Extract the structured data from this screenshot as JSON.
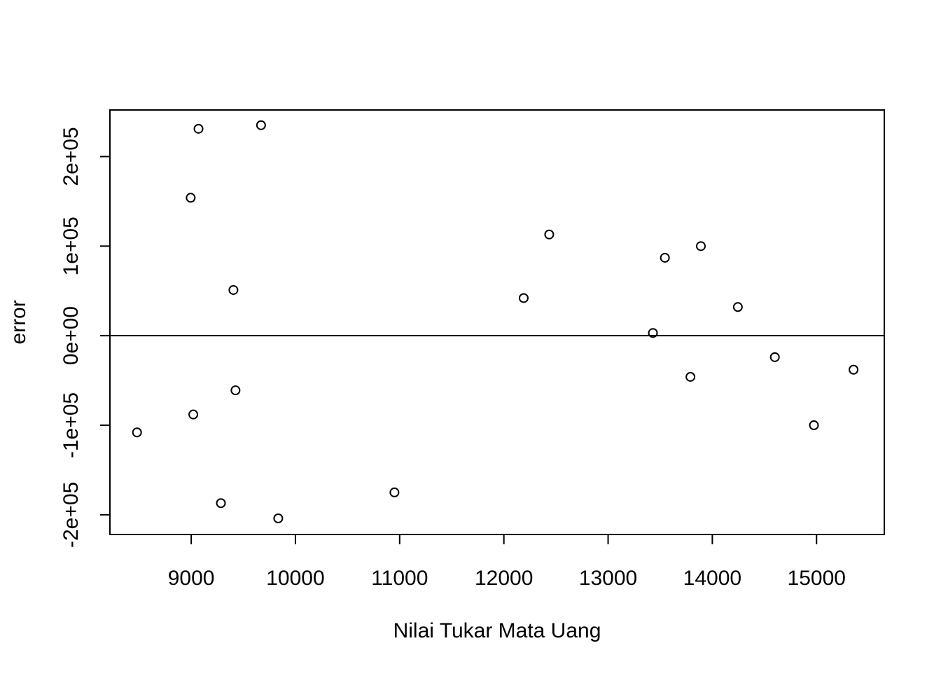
{
  "chart_data": {
    "type": "scatter",
    "title": "",
    "xlabel": "Nilai Tukar Mata Uang",
    "ylabel": "error",
    "xlim": [
      8220,
      15650
    ],
    "ylim": [
      -222000,
      252000
    ],
    "xticks": [
      9000,
      10000,
      11000,
      12000,
      13000,
      14000,
      15000
    ],
    "xtick_labels": [
      "9000",
      "10000",
      "11000",
      "12000",
      "13000",
      "14000",
      "15000"
    ],
    "yticks": [
      -200000,
      -100000,
      0,
      100000,
      200000
    ],
    "ytick_labels": [
      "-2e+05",
      "-1e+05",
      "0e+00",
      "1e+05",
      "2e+05"
    ],
    "hline": 0,
    "grid": false,
    "marker": "open-circle",
    "point_color": "#000000",
    "points": [
      {
        "x": 8480,
        "y": -108000
      },
      {
        "x": 8995,
        "y": 154000
      },
      {
        "x": 9020,
        "y": -88000
      },
      {
        "x": 9070,
        "y": 231000
      },
      {
        "x": 9285,
        "y": -187000
      },
      {
        "x": 9405,
        "y": 51000
      },
      {
        "x": 9425,
        "y": -61000
      },
      {
        "x": 9670,
        "y": 235000
      },
      {
        "x": 9835,
        "y": -204000
      },
      {
        "x": 10950,
        "y": -175000
      },
      {
        "x": 12190,
        "y": 42000
      },
      {
        "x": 12435,
        "y": 113000
      },
      {
        "x": 13430,
        "y": 3000
      },
      {
        "x": 13545,
        "y": 87000
      },
      {
        "x": 13790,
        "y": -46000
      },
      {
        "x": 13890,
        "y": 100000
      },
      {
        "x": 14245,
        "y": 32000
      },
      {
        "x": 14600,
        "y": -24000
      },
      {
        "x": 14975,
        "y": -100000
      },
      {
        "x": 15355,
        "y": -38000
      }
    ]
  }
}
